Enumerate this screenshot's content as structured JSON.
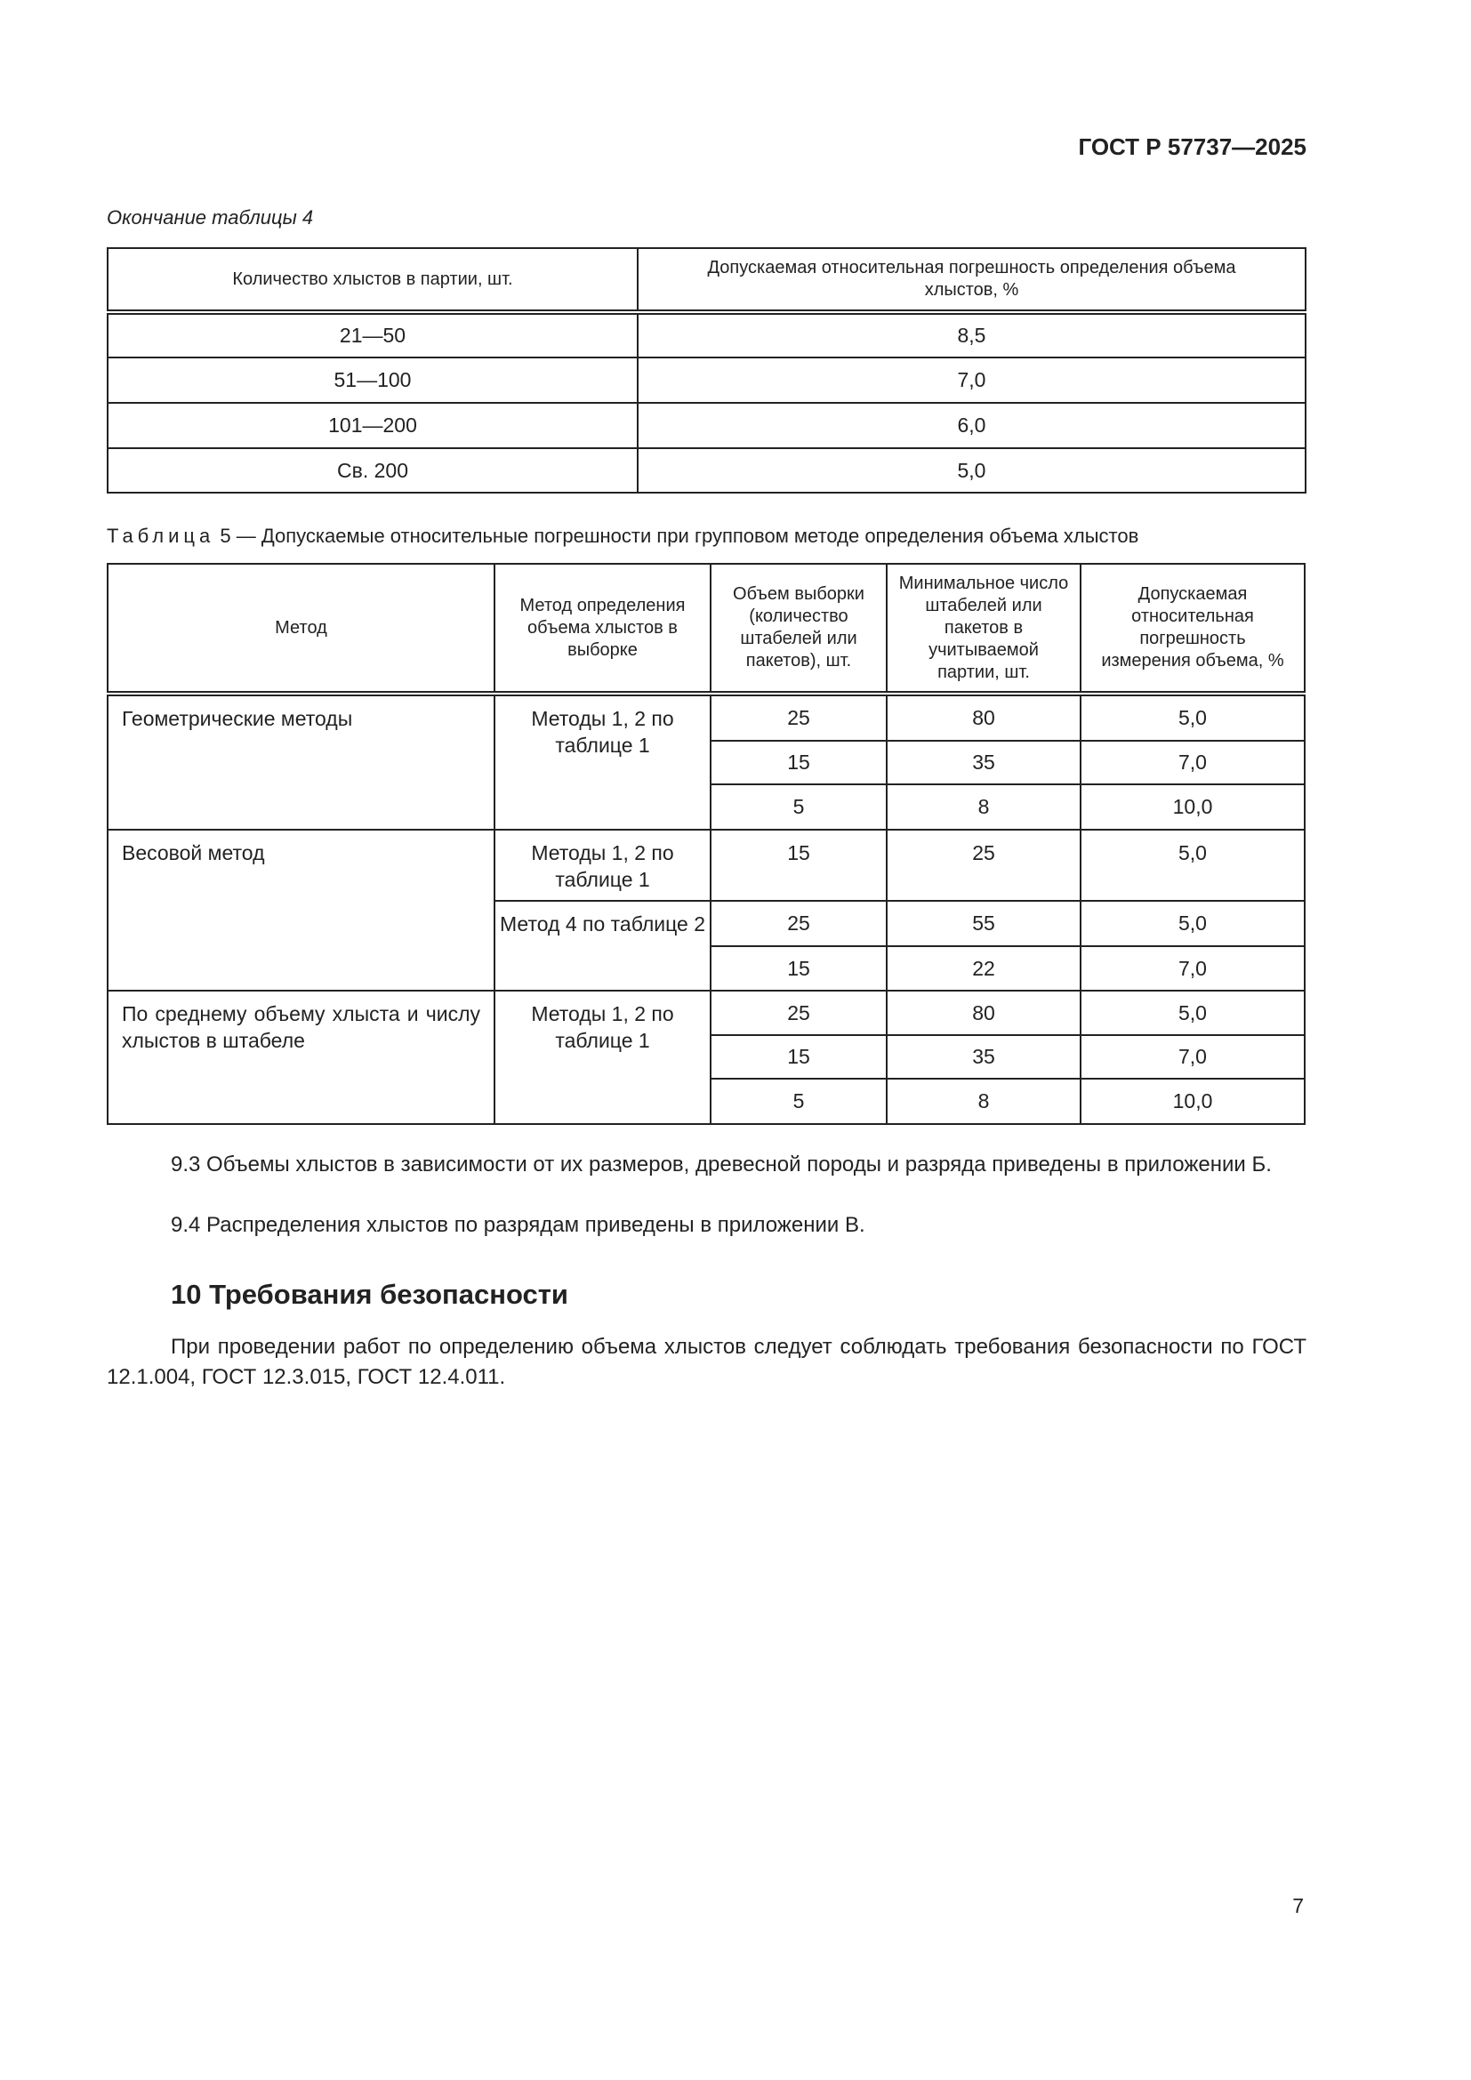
{
  "header": {
    "doc_code": "ГОСТ Р 57737—2025"
  },
  "table4": {
    "continuation_label": "Окончание таблицы 4",
    "headers": [
      "Количество хлыстов в партии, шт.",
      "Допускаемая относительная погрешность определения объема хлыстов, %"
    ],
    "rows": [
      [
        "21—50",
        "8,5"
      ],
      [
        "51—100",
        "7,0"
      ],
      [
        "101—200",
        "6,0"
      ],
      [
        "Св. 200",
        "5,0"
      ]
    ]
  },
  "table5": {
    "caption_prefix": "Таблица",
    "caption_number": "5",
    "caption_text": "— Допускаемые относительные погрешности при групповом методе определения объема хлыстов",
    "headers": [
      "Метод",
      "Метод определения объема хлыстов в выборке",
      "Объем выборки (количество штабелей или пакетов), шт.",
      "Минимальное число штабелей или пакетов в учитываемой партии, шт.",
      "Допускаемая относительная погрешность измерения объема, %"
    ],
    "groups": [
      {
        "method": "Геометрические методы",
        "sub": [
          {
            "name": "Методы 1, 2 по таблице 1",
            "rows": [
              [
                "25",
                "80",
                "5,0"
              ],
              [
                "15",
                "35",
                "7,0"
              ],
              [
                "5",
                "8",
                "10,0"
              ]
            ]
          }
        ]
      },
      {
        "method": "Весовой метод",
        "sub": [
          {
            "name": "Методы 1, 2 по таблице 1",
            "rows": [
              [
                "15",
                "25",
                "5,0"
              ]
            ]
          },
          {
            "name": "Метод 4 по таблице 2",
            "rows": [
              [
                "25",
                "55",
                "5,0"
              ],
              [
                "15",
                "22",
                "7,0"
              ]
            ]
          }
        ]
      },
      {
        "method": "По среднему объему хлыста и числу хлыстов в штабеле",
        "sub": [
          {
            "name": "Методы 1, 2 по таблице 1",
            "rows": [
              [
                "25",
                "80",
                "5,0"
              ],
              [
                "15",
                "35",
                "7,0"
              ],
              [
                "5",
                "8",
                "10,0"
              ]
            ]
          }
        ]
      }
    ]
  },
  "paragraphs": {
    "p93": "9.3 Объемы хлыстов в зависимости от их размеров, древесной породы и разряда приведены в приложении Б.",
    "p94": "9.4 Распределения хлыстов по разрядам приведены в приложении В."
  },
  "section10": {
    "heading": "10 Требования безопасности",
    "text": "При проведении работ по определению объема хлыстов следует соблюдать требования безопасности по ГОСТ 12.1.004, ГОСТ 12.3.015, ГОСТ 12.4.011."
  },
  "footer": {
    "page_number": "7"
  }
}
